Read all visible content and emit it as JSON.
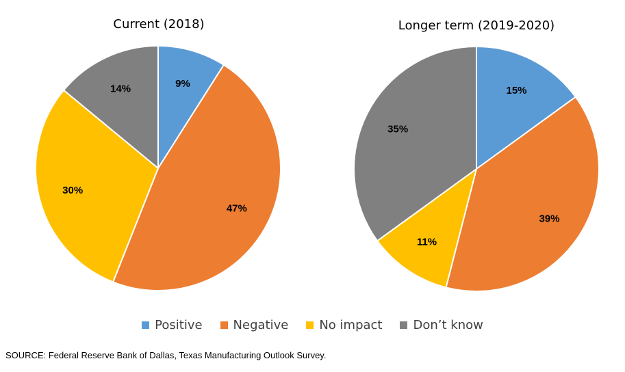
{
  "chart_data": [
    {
      "type": "pie",
      "title": "Current (2018)",
      "categories": [
        "Positive",
        "Negative",
        "No impact",
        "Don’t know"
      ],
      "values": [
        9,
        47,
        30,
        14
      ],
      "value_labels": [
        "9%",
        "47%",
        "30%",
        "14%"
      ]
    },
    {
      "type": "pie",
      "title": "Longer term (2019-2020)",
      "categories": [
        "Positive",
        "Negative",
        "No impact",
        "Don’t know"
      ],
      "values": [
        15,
        39,
        11,
        35
      ],
      "value_labels": [
        "15%",
        "39%",
        "11%",
        "35%"
      ]
    }
  ],
  "colors": [
    "#5B9BD5",
    "#ED7D31",
    "#FFC000",
    "#808080"
  ],
  "legend": {
    "placement": "bottom",
    "items": [
      "Positive",
      "Negative",
      "No impact",
      "Don’t know"
    ]
  },
  "source": "SOURCE: Federal Reserve Bank of Dallas, Texas Manufacturing Outlook Survey."
}
